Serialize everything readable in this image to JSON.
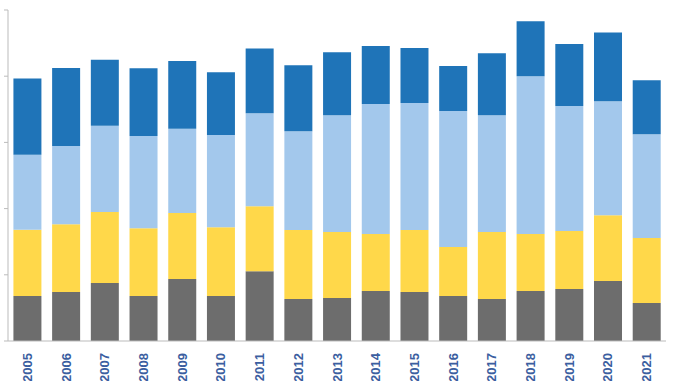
{
  "chart_data": {
    "type": "bar",
    "stacked": true,
    "grid": false,
    "tick_labels": "x",
    "categories": [
      "2005",
      "2006",
      "2007",
      "2008",
      "2009",
      "2010",
      "2011",
      "2012",
      "2013",
      "2014",
      "2015",
      "2016",
      "2017",
      "2018",
      "2019",
      "2020",
      "2021"
    ],
    "ylim": [
      0,
      100
    ],
    "yticks": [
      0,
      20,
      40,
      60,
      80,
      100
    ],
    "series": [
      {
        "color": "#6d6d6d",
        "values": [
          13.6,
          14.8,
          17.5,
          13.6,
          18.7,
          13.6,
          21.1,
          12.7,
          13,
          15.1,
          14.8,
          13.6,
          12.7,
          15.1,
          15.7,
          18.1,
          11.5
        ]
      },
      {
        "color": "#ffd84a",
        "values": [
          20,
          20.5,
          21.5,
          20.5,
          20,
          20.8,
          19.6,
          20.8,
          19.9,
          17.2,
          18.7,
          14.8,
          20.2,
          17.2,
          17.5,
          19.9,
          19.6
        ]
      },
      {
        "color": "#a3c8ec",
        "values": [
          22.7,
          23.6,
          26,
          27.8,
          25.4,
          27.8,
          28.1,
          29.9,
          35.3,
          39.3,
          38.4,
          41.1,
          35.3,
          47.7,
          37.8,
          34.4,
          31.4
        ]
      },
      {
        "color": "#1f74b8",
        "values": [
          23,
          23.6,
          20,
          20.5,
          20.5,
          19,
          19.6,
          19.9,
          19,
          17.5,
          16.6,
          13.6,
          18.7,
          16.6,
          18.7,
          20.8,
          16.3
        ]
      }
    ]
  }
}
